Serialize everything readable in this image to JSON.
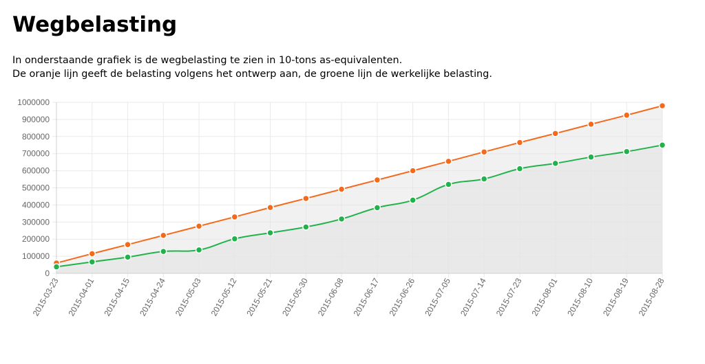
{
  "page": {
    "title": "Wegbelasting",
    "intro_lines": [
      "In onderstaande grafiek is de wegbelasting te zien in 10-tons as-equivalenten.",
      "De oranje lijn geeft de belasting volgens het ontwerp aan, de groene lijn de werkelijke belasting."
    ]
  },
  "colors": {
    "design_line": "#f26b1d",
    "actual_line": "#22b24c",
    "fill": "#e6e6e6",
    "grid": "#e9e9e9"
  },
  "chart_data": {
    "type": "area",
    "title": "",
    "xlabel": "",
    "ylabel": "",
    "ylim": [
      0,
      1000000
    ],
    "yticks": [
      "0",
      "100000",
      "200000",
      "300000",
      "400000",
      "500000",
      "600000",
      "700000",
      "800000",
      "900000",
      "1000000"
    ],
    "grid": true,
    "legend": "none",
    "categories": [
      "2015-03-23",
      "2015-04-01",
      "2015-04-15",
      "2015-04-24",
      "2015-05-03",
      "2015-05-12",
      "2015-05-21",
      "2015-05-30",
      "2015-06-08",
      "2015-06-17",
      "2015-06-26",
      "2015-07-05",
      "2015-07-14",
      "2015-07-23",
      "2015-08-01",
      "2015-08-10",
      "2015-08-19",
      "2015-08-28"
    ],
    "series": [
      {
        "color": "#f26b1d",
        "values": [
          60000,
          115000,
          168000,
          222000,
          276000,
          330000,
          385000,
          438000,
          492000,
          546000,
          600000,
          655000,
          710000,
          765000,
          818000,
          872000,
          925000,
          980000
        ]
      },
      {
        "color": "#22b24c",
        "values": [
          38000,
          67000,
          95000,
          128000,
          137000,
          202000,
          237000,
          271000,
          318000,
          384000,
          428000,
          520000,
          552000,
          612000,
          643000,
          680000,
          712000,
          750000
        ]
      }
    ]
  }
}
